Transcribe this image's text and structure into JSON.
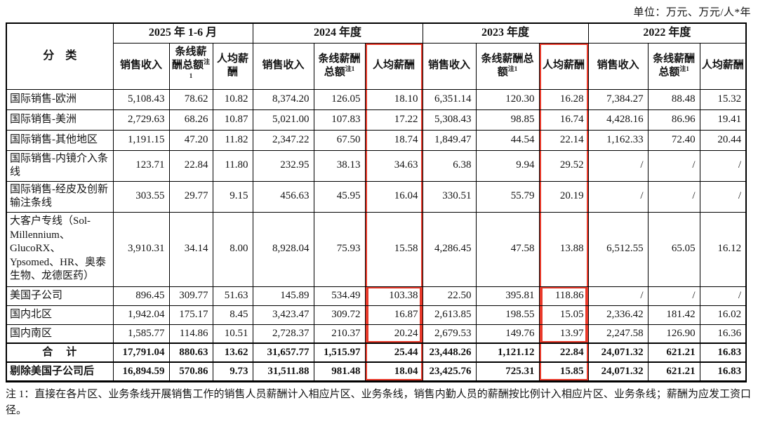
{
  "unit_note": "单位：万元、万元/人*年",
  "footnote": "注 1：直接在各片区、业务条线开展销售工作的销售人员薪酬计入相应片区、业务条线，销售内勤人员的薪酬按比例计入相应片区、业务条线；薪酬为应发工资口径。",
  "colors": {
    "highlight_red": "#e8392a",
    "border": "#000000",
    "text": "#141414",
    "background": "#ffffff"
  },
  "table": {
    "category_header": "分　类",
    "periods": [
      {
        "label": "2025 年 1-6 月"
      },
      {
        "label": "2024 年度"
      },
      {
        "label": "2023 年度"
      },
      {
        "label": "2022 年度"
      }
    ],
    "sub_headers": [
      {
        "text": "销售收入"
      },
      {
        "text": "条线薪酬总额",
        "sup": "注1"
      },
      {
        "text": "人均薪酬"
      }
    ],
    "highlights": {
      "value_column_indices": [
        5,
        8
      ],
      "inner_box_row_indices": [
        6,
        7,
        8
      ],
      "color": "#e8392a"
    },
    "rows": [
      {
        "label": "国际销售-欧洲",
        "values": [
          "5,108.43",
          "78.62",
          "10.82",
          "8,374.20",
          "126.05",
          "18.10",
          "6,351.14",
          "120.30",
          "16.28",
          "7,384.27",
          "88.48",
          "15.32"
        ]
      },
      {
        "label": "国际销售-美洲",
        "values": [
          "2,729.63",
          "68.26",
          "10.87",
          "5,021.00",
          "107.83",
          "17.22",
          "5,308.43",
          "98.85",
          "16.74",
          "4,428.16",
          "86.96",
          "19.41"
        ]
      },
      {
        "label": "国际销售-其他地区",
        "values": [
          "1,191.15",
          "47.20",
          "11.82",
          "2,347.22",
          "67.50",
          "18.74",
          "1,849.47",
          "44.54",
          "22.14",
          "1,162.33",
          "72.40",
          "20.44"
        ]
      },
      {
        "label": "国际销售-内镜介入条线",
        "values": [
          "123.71",
          "22.84",
          "11.80",
          "232.95",
          "38.13",
          "34.63",
          "6.38",
          "9.94",
          "29.52",
          "/",
          "/",
          "/"
        ]
      },
      {
        "label": "国际销售-经皮及创新输注条线",
        "values": [
          "303.55",
          "29.77",
          "9.15",
          "456.63",
          "45.95",
          "16.04",
          "330.51",
          "55.79",
          "20.19",
          "/",
          "/",
          "/"
        ]
      },
      {
        "label": "大客户专线（Sol-Millennium、GlucoRX、Ypsomed、HR、奥泰生物、龙德医药）",
        "values": [
          "3,910.31",
          "34.14",
          "8.00",
          "8,928.04",
          "75.93",
          "15.58",
          "4,286.45",
          "47.58",
          "13.88",
          "6,512.55",
          "65.05",
          "16.12"
        ]
      },
      {
        "label": "美国子公司",
        "values": [
          "896.45",
          "309.77",
          "51.63",
          "145.89",
          "534.49",
          "103.38",
          "22.50",
          "395.81",
          "118.86",
          "/",
          "/",
          "/"
        ]
      },
      {
        "label": "国内北区",
        "values": [
          "1,942.04",
          "175.17",
          "8.45",
          "3,423.47",
          "309.72",
          "16.87",
          "2,613.85",
          "198.55",
          "15.05",
          "2,336.42",
          "181.42",
          "16.02"
        ]
      },
      {
        "label": "国内南区",
        "values": [
          "1,585.77",
          "114.86",
          "10.51",
          "2,728.37",
          "210.37",
          "20.24",
          "2,679.53",
          "149.76",
          "13.97",
          "2,247.58",
          "126.90",
          "16.36"
        ]
      },
      {
        "label": "合　计",
        "bold": true,
        "align": "center",
        "values": [
          "17,791.04",
          "880.63",
          "13.62",
          "31,657.77",
          "1,515.97",
          "25.44",
          "23,448.26",
          "1,121.12",
          "22.84",
          "24,071.32",
          "621.21",
          "16.83"
        ]
      },
      {
        "label": "剔除美国子公司后",
        "bold": true,
        "values": [
          "16,894.59",
          "570.86",
          "9.73",
          "31,511.88",
          "981.48",
          "18.04",
          "23,425.76",
          "725.31",
          "15.85",
          "24,071.32",
          "621.21",
          "16.83"
        ]
      }
    ]
  }
}
